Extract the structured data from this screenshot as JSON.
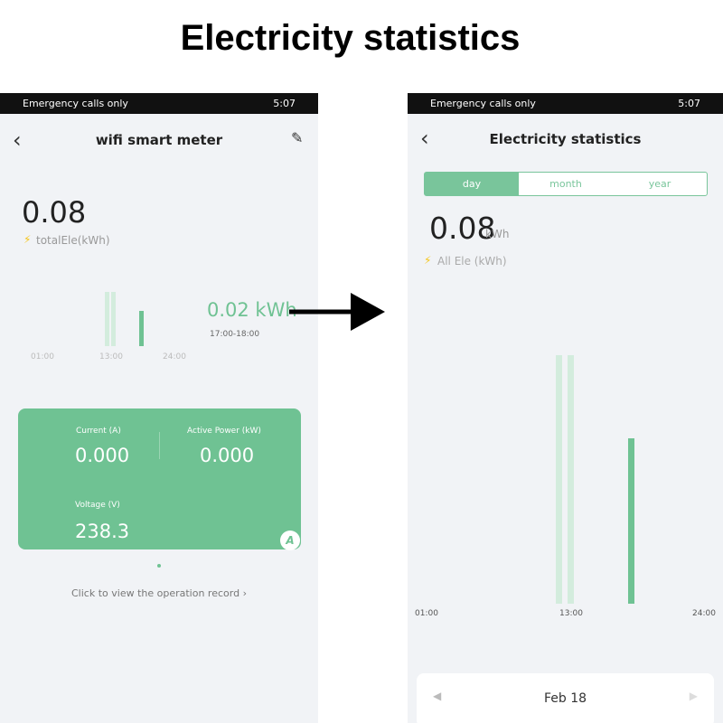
{
  "header": {
    "title": "Electricity statistics"
  },
  "left_screen": {
    "status_bar": {
      "carrier": "Emergency calls only",
      "time": "5:07"
    },
    "nav_title": "wifi smart meter",
    "total": {
      "value": "0.08",
      "label": "totalEle(kWh)"
    },
    "mini_chart": {
      "selected_value": "0.02 kWh",
      "selected_range": "17:00-18:00",
      "x_labels": [
        "01:00",
        "13:00",
        "24:00"
      ]
    },
    "card": {
      "current_label": "Current (A)",
      "current_value": "0.000",
      "power_label": "Active Power (kW)",
      "power_value": "0.000",
      "voltage_label": "Voltage (V)",
      "voltage_value": "238.3",
      "badge": "A"
    },
    "record_link": "Click to view the operation record"
  },
  "right_screen": {
    "status_bar": {
      "carrier": "Emergency calls only",
      "time": "5:07"
    },
    "nav_title": "Electricity statistics",
    "tabs": [
      "day",
      "month",
      "year"
    ],
    "total": {
      "value": "0.08",
      "unit": "kWh",
      "label": "All Ele (kWh)"
    },
    "chart": {
      "x_labels": [
        "01:00",
        "13:00",
        "24:00"
      ]
    },
    "date": "Feb 18"
  }
}
